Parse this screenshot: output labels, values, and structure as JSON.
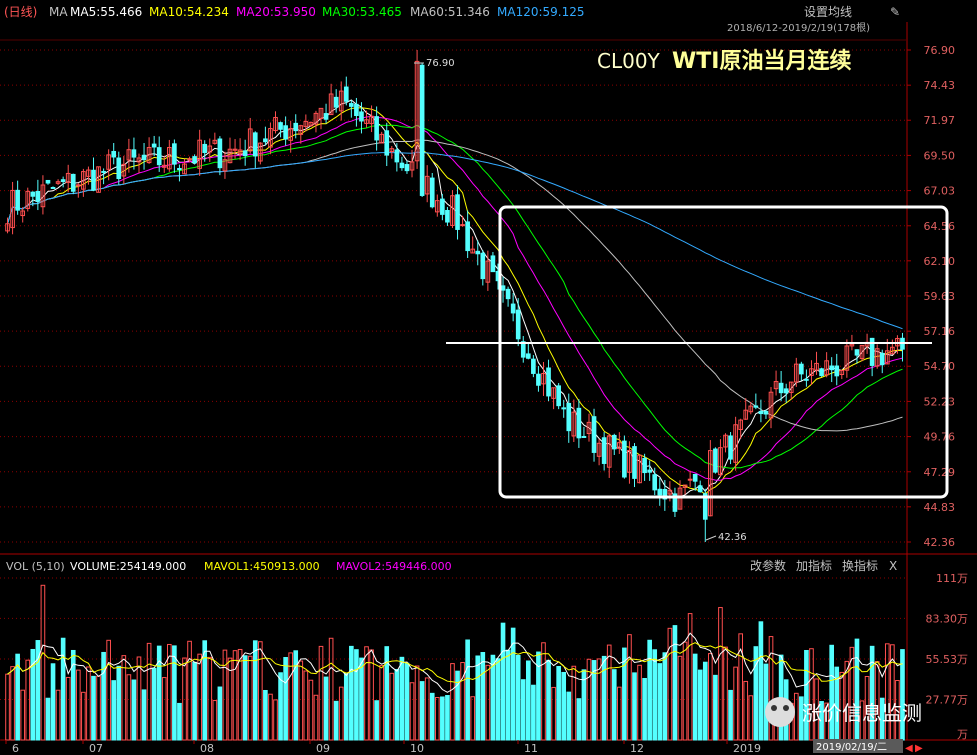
{
  "header": {
    "period": "(日线)",
    "ma_label": "MA",
    "ma5": "MA5:55.466",
    "ma10": "MA10:54.234",
    "ma20": "MA20:53.950",
    "ma30": "MA30:53.465",
    "ma60": "MA60:51.346",
    "ma120": "MA120:59.125",
    "settings": "设置均线",
    "range": "2018/6/12-2019/2/19(178根)"
  },
  "title": {
    "code": "CL00Y",
    "name": "WTI原油当月连续"
  },
  "annotations": {
    "high": "76.90",
    "low": "42.36"
  },
  "vol_header": {
    "vol": "VOL (5,10)",
    "volume": "VOLUME:254149.000",
    "mavol1": "MAVOL1:450913.000",
    "mavol2": "MAVOL2:549446.000",
    "btn_params": "改参数",
    "btn_add": "加指标",
    "btn_switch": "换指标",
    "btn_close": "X"
  },
  "price_axis": [
    "76.90",
    "74.43",
    "71.97",
    "69.50",
    "67.03",
    "64.56",
    "62.10",
    "59.63",
    "57.16",
    "54.70",
    "52.23",
    "49.76",
    "47.29",
    "44.83",
    "42.36"
  ],
  "vol_axis": [
    "111万",
    "83.30万",
    "55.53万",
    "27.77万",
    "万"
  ],
  "date_axis": [
    "6",
    "07",
    "08",
    "09",
    "10",
    "11",
    "12",
    "2019"
  ],
  "date_current": "2019/02/19/二",
  "watermark": "涨价信息监测",
  "colors": {
    "up": "#ff4f4f",
    "down": "#54ffff",
    "ma5": "#ffffff",
    "ma10": "#ffff00",
    "ma20": "#ff00ff",
    "ma30": "#00ff00",
    "ma60": "#c0c0c0",
    "ma120": "#33aaff",
    "grid": "#8b0000"
  },
  "chart_data": {
    "type": "candlestick",
    "x_range": [
      "2018-06-12",
      "2019-02-19"
    ],
    "ylim": [
      42.36,
      76.9
    ],
    "months": [
      "06",
      "07",
      "08",
      "09",
      "10",
      "11",
      "12",
      "2019-01",
      "2019-02"
    ],
    "monthly_close": [
      65.9,
      68.8,
      69.8,
      73.2,
      65.3,
      50.9,
      45.4,
      53.8,
      56.1
    ],
    "extremes": {
      "high": 76.9,
      "low": 42.36
    },
    "moving_averages": {
      "MA5": 55.466,
      "MA10": 54.234,
      "MA20": 53.95,
      "MA30": 53.465,
      "MA60": 51.346,
      "MA120": 59.125
    },
    "volume": {
      "last": 254149,
      "MAVOL1": 450913,
      "MAVOL2": 549446,
      "ylim_wan": [
        0,
        111
      ]
    },
    "resistance_line": 56.2,
    "bars": 178
  }
}
